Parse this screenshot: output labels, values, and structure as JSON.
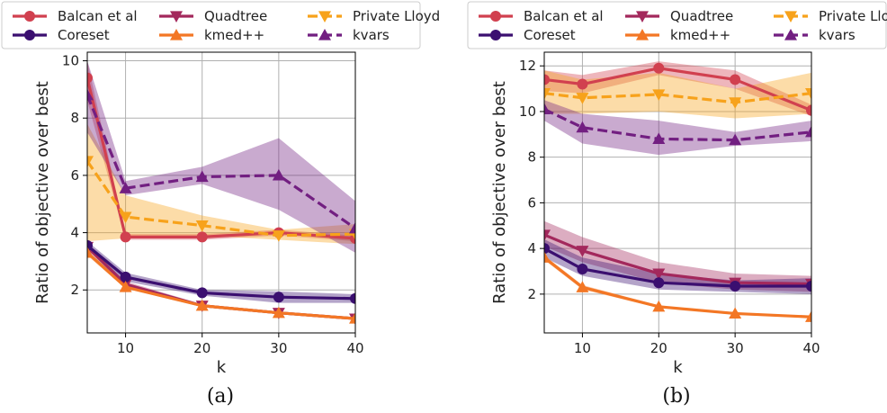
{
  "chart_data": [
    {
      "type": "line",
      "caption": "(a)",
      "xlabel": "k",
      "ylabel": "Ratio of objective over best",
      "xlim": [
        5,
        40
      ],
      "ylim": [
        0.5,
        10.3
      ],
      "xticks": [
        10,
        20,
        30,
        40
      ],
      "yticks": [
        2,
        4,
        6,
        8,
        10
      ],
      "grid": true,
      "legend_position": "top",
      "x": [
        5,
        10,
        20,
        30,
        40
      ],
      "series": [
        {
          "name": "Balcan et al",
          "color": "#d1404f",
          "marker": "circle",
          "dashed": false,
          "values": [
            9.4,
            3.85,
            3.85,
            4.0,
            3.8
          ],
          "lower": [
            8.6,
            3.75,
            3.75,
            3.9,
            3.7
          ],
          "upper": [
            10.0,
            3.95,
            3.95,
            4.1,
            3.9
          ]
        },
        {
          "name": "Quadtree",
          "color": "#a3285c",
          "marker": "triangle-down",
          "dashed": false,
          "values": [
            3.5,
            2.2,
            1.45,
            1.2,
            1.0
          ],
          "lower": [
            3.4,
            2.1,
            1.4,
            1.15,
            0.95
          ],
          "upper": [
            3.6,
            2.3,
            1.5,
            1.25,
            1.05
          ]
        },
        {
          "name": "Private Lloyd",
          "color": "#f7a21b",
          "marker": "triangle-down",
          "dashed": true,
          "values": [
            6.5,
            4.55,
            4.25,
            3.9,
            3.95
          ],
          "lower": [
            3.7,
            3.8,
            3.9,
            3.75,
            3.6
          ],
          "upper": [
            7.8,
            5.3,
            4.6,
            4.1,
            4.3
          ]
        },
        {
          "name": "Coreset",
          "color": "#3b0f70",
          "marker": "circle",
          "dashed": false,
          "values": [
            3.55,
            2.45,
            1.9,
            1.75,
            1.7
          ],
          "lower": [
            3.4,
            2.3,
            1.8,
            1.55,
            1.55
          ],
          "upper": [
            3.7,
            2.6,
            2.0,
            1.95,
            1.85
          ]
        },
        {
          "name": "kmed++",
          "color": "#f37725",
          "marker": "triangle-up",
          "dashed": false,
          "values": [
            3.3,
            2.1,
            1.45,
            1.2,
            1.0
          ],
          "lower": [
            3.2,
            2.05,
            1.4,
            1.15,
            0.95
          ],
          "upper": [
            3.4,
            2.15,
            1.5,
            1.25,
            1.05
          ]
        },
        {
          "name": "kvars",
          "color": "#721f81",
          "marker": "triangle-up",
          "dashed": true,
          "values": [
            8.8,
            5.55,
            5.95,
            6.0,
            4.15
          ],
          "lower": [
            7.5,
            5.3,
            5.7,
            4.8,
            3.3
          ],
          "upper": [
            10.0,
            5.8,
            6.3,
            7.3,
            5.1
          ]
        }
      ]
    },
    {
      "type": "line",
      "caption": "(b)",
      "xlabel": "k",
      "ylabel": "Ratio of objective over best",
      "xlim": [
        5,
        40
      ],
      "ylim": [
        0.3,
        12.6
      ],
      "xticks": [
        10,
        20,
        30,
        40
      ],
      "yticks": [
        2,
        4,
        6,
        8,
        10,
        12
      ],
      "grid": true,
      "legend_position": "top",
      "x": [
        5,
        10,
        20,
        30,
        40
      ],
      "series": [
        {
          "name": "Balcan et al",
          "color": "#d1404f",
          "marker": "circle",
          "dashed": false,
          "values": [
            11.4,
            11.2,
            11.9,
            11.4,
            10.05
          ],
          "lower": [
            10.9,
            10.8,
            11.6,
            11.0,
            9.8
          ],
          "upper": [
            11.8,
            11.6,
            12.2,
            11.8,
            10.3
          ]
        },
        {
          "name": "Quadtree",
          "color": "#a3285c",
          "marker": "triangle-down",
          "dashed": false,
          "values": [
            4.6,
            3.9,
            2.9,
            2.5,
            2.45
          ],
          "lower": [
            4.1,
            3.4,
            2.5,
            2.2,
            2.1
          ],
          "upper": [
            5.2,
            4.5,
            3.4,
            2.9,
            2.8
          ]
        },
        {
          "name": "Private Lloyd",
          "color": "#f7a21b",
          "marker": "triangle-down",
          "dashed": true,
          "values": [
            10.8,
            10.6,
            10.75,
            10.4,
            10.8
          ],
          "lower": [
            9.9,
            9.9,
            10.0,
            9.7,
            9.9
          ],
          "upper": [
            11.8,
            11.4,
            11.7,
            11.0,
            11.7
          ]
        },
        {
          "name": "Coreset",
          "color": "#3b0f70",
          "marker": "circle",
          "dashed": false,
          "values": [
            4.0,
            3.1,
            2.5,
            2.35,
            2.35
          ],
          "lower": [
            3.6,
            2.8,
            2.2,
            2.1,
            2.0
          ],
          "upper": [
            4.4,
            3.6,
            2.9,
            2.6,
            2.7
          ]
        },
        {
          "name": "kmed++",
          "color": "#f37725",
          "marker": "triangle-up",
          "dashed": false,
          "values": [
            3.6,
            2.3,
            1.45,
            1.15,
            1.0
          ],
          "lower": [
            3.5,
            2.2,
            1.4,
            1.1,
            0.95
          ],
          "upper": [
            3.7,
            2.4,
            1.5,
            1.2,
            1.05
          ]
        },
        {
          "name": "kvars",
          "color": "#721f81",
          "marker": "triangle-up",
          "dashed": true,
          "values": [
            10.1,
            9.3,
            8.8,
            8.75,
            9.1
          ],
          "lower": [
            9.6,
            8.6,
            8.1,
            8.5,
            8.7
          ],
          "upper": [
            10.5,
            9.9,
            9.6,
            9.1,
            9.6
          ]
        }
      ]
    }
  ]
}
